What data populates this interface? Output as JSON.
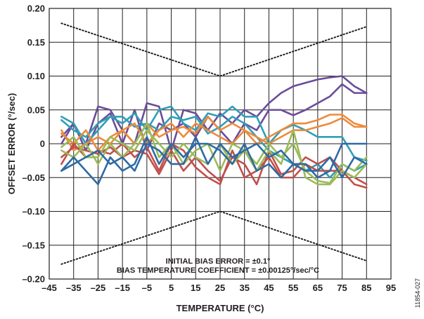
{
  "chart_data": {
    "type": "line",
    "title": "",
    "xlabel": "TEMPERATURE (°C)",
    "ylabel": "OFFSET ERROR (°/sec)",
    "xlim": [
      -45,
      95
    ],
    "ylim": [
      -0.2,
      0.2
    ],
    "x_ticks": [
      -45,
      -35,
      -25,
      -15,
      -5,
      5,
      15,
      25,
      35,
      45,
      55,
      65,
      75,
      85,
      95
    ],
    "x_tick_labels": [
      "–45",
      "–35",
      "–25",
      "–15",
      "–5",
      "5",
      "15",
      "25",
      "35",
      "45",
      "55",
      "65",
      "75",
      "85",
      "95"
    ],
    "y_ticks": [
      -0.2,
      -0.15,
      -0.1,
      -0.05,
      0,
      0.05,
      0.1,
      0.15,
      0.2
    ],
    "y_tick_labels": [
      "–0.20",
      "–0.15",
      "–0.10",
      "–0.05",
      "0",
      "0.05",
      "0.10",
      "0.15",
      "0.20"
    ],
    "grid": true,
    "annotations": [
      "INITIAL BIAS ERROR = ±0.1°",
      "BIAS TEMPERATURE COEFFICIENT = ±0.00125°/sec/°C"
    ],
    "figure_id": "11854-027",
    "limit_lines": [
      {
        "x": [
          -40,
          25,
          85
        ],
        "y": [
          0.178,
          0.1,
          0.173
        ],
        "style": "dotted",
        "color": "#231f20"
      },
      {
        "x": [
          -40,
          25,
          85
        ],
        "y": [
          -0.178,
          -0.1,
          -0.173
        ],
        "style": "dotted",
        "color": "#231f20"
      }
    ],
    "x": [
      -40,
      -35,
      -30,
      -25,
      -20,
      -15,
      -10,
      -5,
      0,
      5,
      10,
      15,
      20,
      25,
      30,
      35,
      40,
      45,
      50,
      55,
      60,
      65,
      70,
      75,
      80,
      85
    ],
    "series": [
      {
        "color": "#6b4c9a",
        "values": [
          0.0,
          0.03,
          0.0,
          0.055,
          0.05,
          0.02,
          0.0,
          0.06,
          0.055,
          -0.01,
          0.05,
          0.045,
          0.02,
          0.045,
          0.03,
          0.05,
          0.04,
          0.06,
          0.075,
          0.085,
          0.09,
          0.095,
          0.098,
          0.1,
          0.085,
          0.075
        ]
      },
      {
        "color": "#6b4c9a",
        "values": [
          0.01,
          0.03,
          -0.01,
          0.03,
          0.045,
          0.0,
          0.05,
          -0.01,
          0.03,
          0.02,
          0.03,
          0.01,
          0.04,
          0.02,
          0.0,
          0.03,
          0.02,
          0.05,
          0.05,
          0.042,
          0.05,
          0.06,
          0.07,
          0.088,
          0.075,
          0.075
        ]
      },
      {
        "color": "#2f9fb5",
        "values": [
          0.04,
          0.03,
          0.0,
          0.02,
          0.04,
          0.03,
          0.045,
          0.02,
          0.05,
          0.055,
          0.03,
          0.02,
          0.045,
          0.04,
          0.055,
          0.04,
          0.04,
          0.0,
          0.02,
          0.028,
          0.02,
          0.01,
          0.01,
          0.01,
          -0.02,
          -0.025
        ]
      },
      {
        "color": "#2f9fb5",
        "values": [
          0.035,
          0.02,
          0.01,
          0.03,
          0.04,
          0.04,
          0.025,
          0.03,
          0.02,
          0.04,
          0.035,
          0.04,
          0.015,
          0.025,
          0.04,
          0.03,
          0.01,
          -0.01,
          -0.02,
          -0.03,
          -0.04,
          -0.03,
          -0.05,
          -0.03,
          -0.04,
          -0.03
        ]
      },
      {
        "color": "#ee8a3a",
        "values": [
          0.015,
          0.0,
          0.02,
          -0.01,
          0.01,
          0.02,
          0.0,
          0.03,
          0.01,
          0.02,
          0.025,
          0.015,
          0.04,
          0.02,
          0.03,
          0.02,
          0.0,
          0.01,
          0.02,
          0.03,
          0.03,
          0.035,
          0.043,
          0.043,
          0.03,
          0.025
        ]
      },
      {
        "color": "#ee8a3a",
        "values": [
          0.02,
          -0.01,
          0.0,
          0.01,
          0.0,
          0.02,
          0.03,
          0.0,
          0.02,
          0.03,
          0.01,
          0.03,
          0.02,
          0.01,
          0.0,
          0.02,
          0.01,
          0.0,
          0.01,
          0.02,
          0.02,
          0.025,
          0.03,
          0.038,
          0.025,
          0.025
        ]
      },
      {
        "color": "#c0504d",
        "values": [
          -0.03,
          0.0,
          -0.02,
          -0.01,
          -0.015,
          0.0,
          -0.02,
          -0.005,
          -0.04,
          0.0,
          -0.01,
          -0.035,
          -0.05,
          -0.06,
          -0.01,
          -0.05,
          -0.04,
          -0.02,
          -0.05,
          -0.05,
          -0.03,
          -0.04,
          -0.04,
          -0.04,
          -0.05,
          -0.06
        ]
      },
      {
        "color": "#c0504d",
        "values": [
          -0.02,
          -0.005,
          -0.01,
          -0.015,
          -0.005,
          -0.02,
          -0.01,
          -0.015,
          -0.045,
          -0.01,
          -0.04,
          -0.02,
          -0.04,
          -0.055,
          -0.02,
          -0.03,
          -0.06,
          -0.01,
          -0.045,
          -0.04,
          -0.02,
          -0.03,
          -0.02,
          -0.04,
          -0.06,
          -0.065
        ]
      },
      {
        "color": "#9bbb59",
        "values": [
          -0.01,
          -0.02,
          0.0,
          -0.03,
          0.0,
          -0.02,
          0.0,
          0.03,
          -0.02,
          0.0,
          -0.03,
          -0.01,
          0.0,
          -0.04,
          0.0,
          -0.01,
          -0.03,
          0.0,
          -0.02,
          0.0,
          -0.04,
          -0.055,
          -0.058,
          -0.03,
          -0.04,
          -0.02
        ]
      },
      {
        "color": "#9bbb59",
        "values": [
          -0.005,
          0.01,
          -0.02,
          -0.02,
          0.01,
          0.0,
          -0.01,
          0.02,
          0.0,
          -0.02,
          0.0,
          -0.02,
          -0.03,
          0.0,
          -0.03,
          -0.01,
          -0.04,
          -0.01,
          -0.03,
          0.02,
          -0.05,
          -0.06,
          -0.06,
          -0.04,
          -0.05,
          -0.03
        ]
      },
      {
        "color": "#2e6aa3",
        "values": [
          -0.04,
          -0.02,
          -0.04,
          -0.06,
          -0.02,
          -0.04,
          -0.03,
          0.01,
          -0.03,
          0.0,
          -0.02,
          0.0,
          0.0,
          -0.01,
          -0.03,
          0.0,
          -0.04,
          -0.03,
          -0.05,
          -0.03,
          -0.04,
          -0.04,
          -0.02,
          -0.05,
          -0.02,
          -0.03
        ]
      },
      {
        "color": "#2e6aa3",
        "values": [
          -0.04,
          -0.03,
          -0.02,
          -0.01,
          -0.03,
          -0.02,
          -0.04,
          0.0,
          -0.01,
          -0.03,
          -0.03,
          0.01,
          -0.03,
          0.0,
          -0.02,
          -0.01,
          0.0,
          -0.02,
          -0.01,
          -0.03,
          -0.03,
          -0.05,
          -0.04,
          0.0,
          0.0,
          0.0
        ]
      }
    ]
  }
}
